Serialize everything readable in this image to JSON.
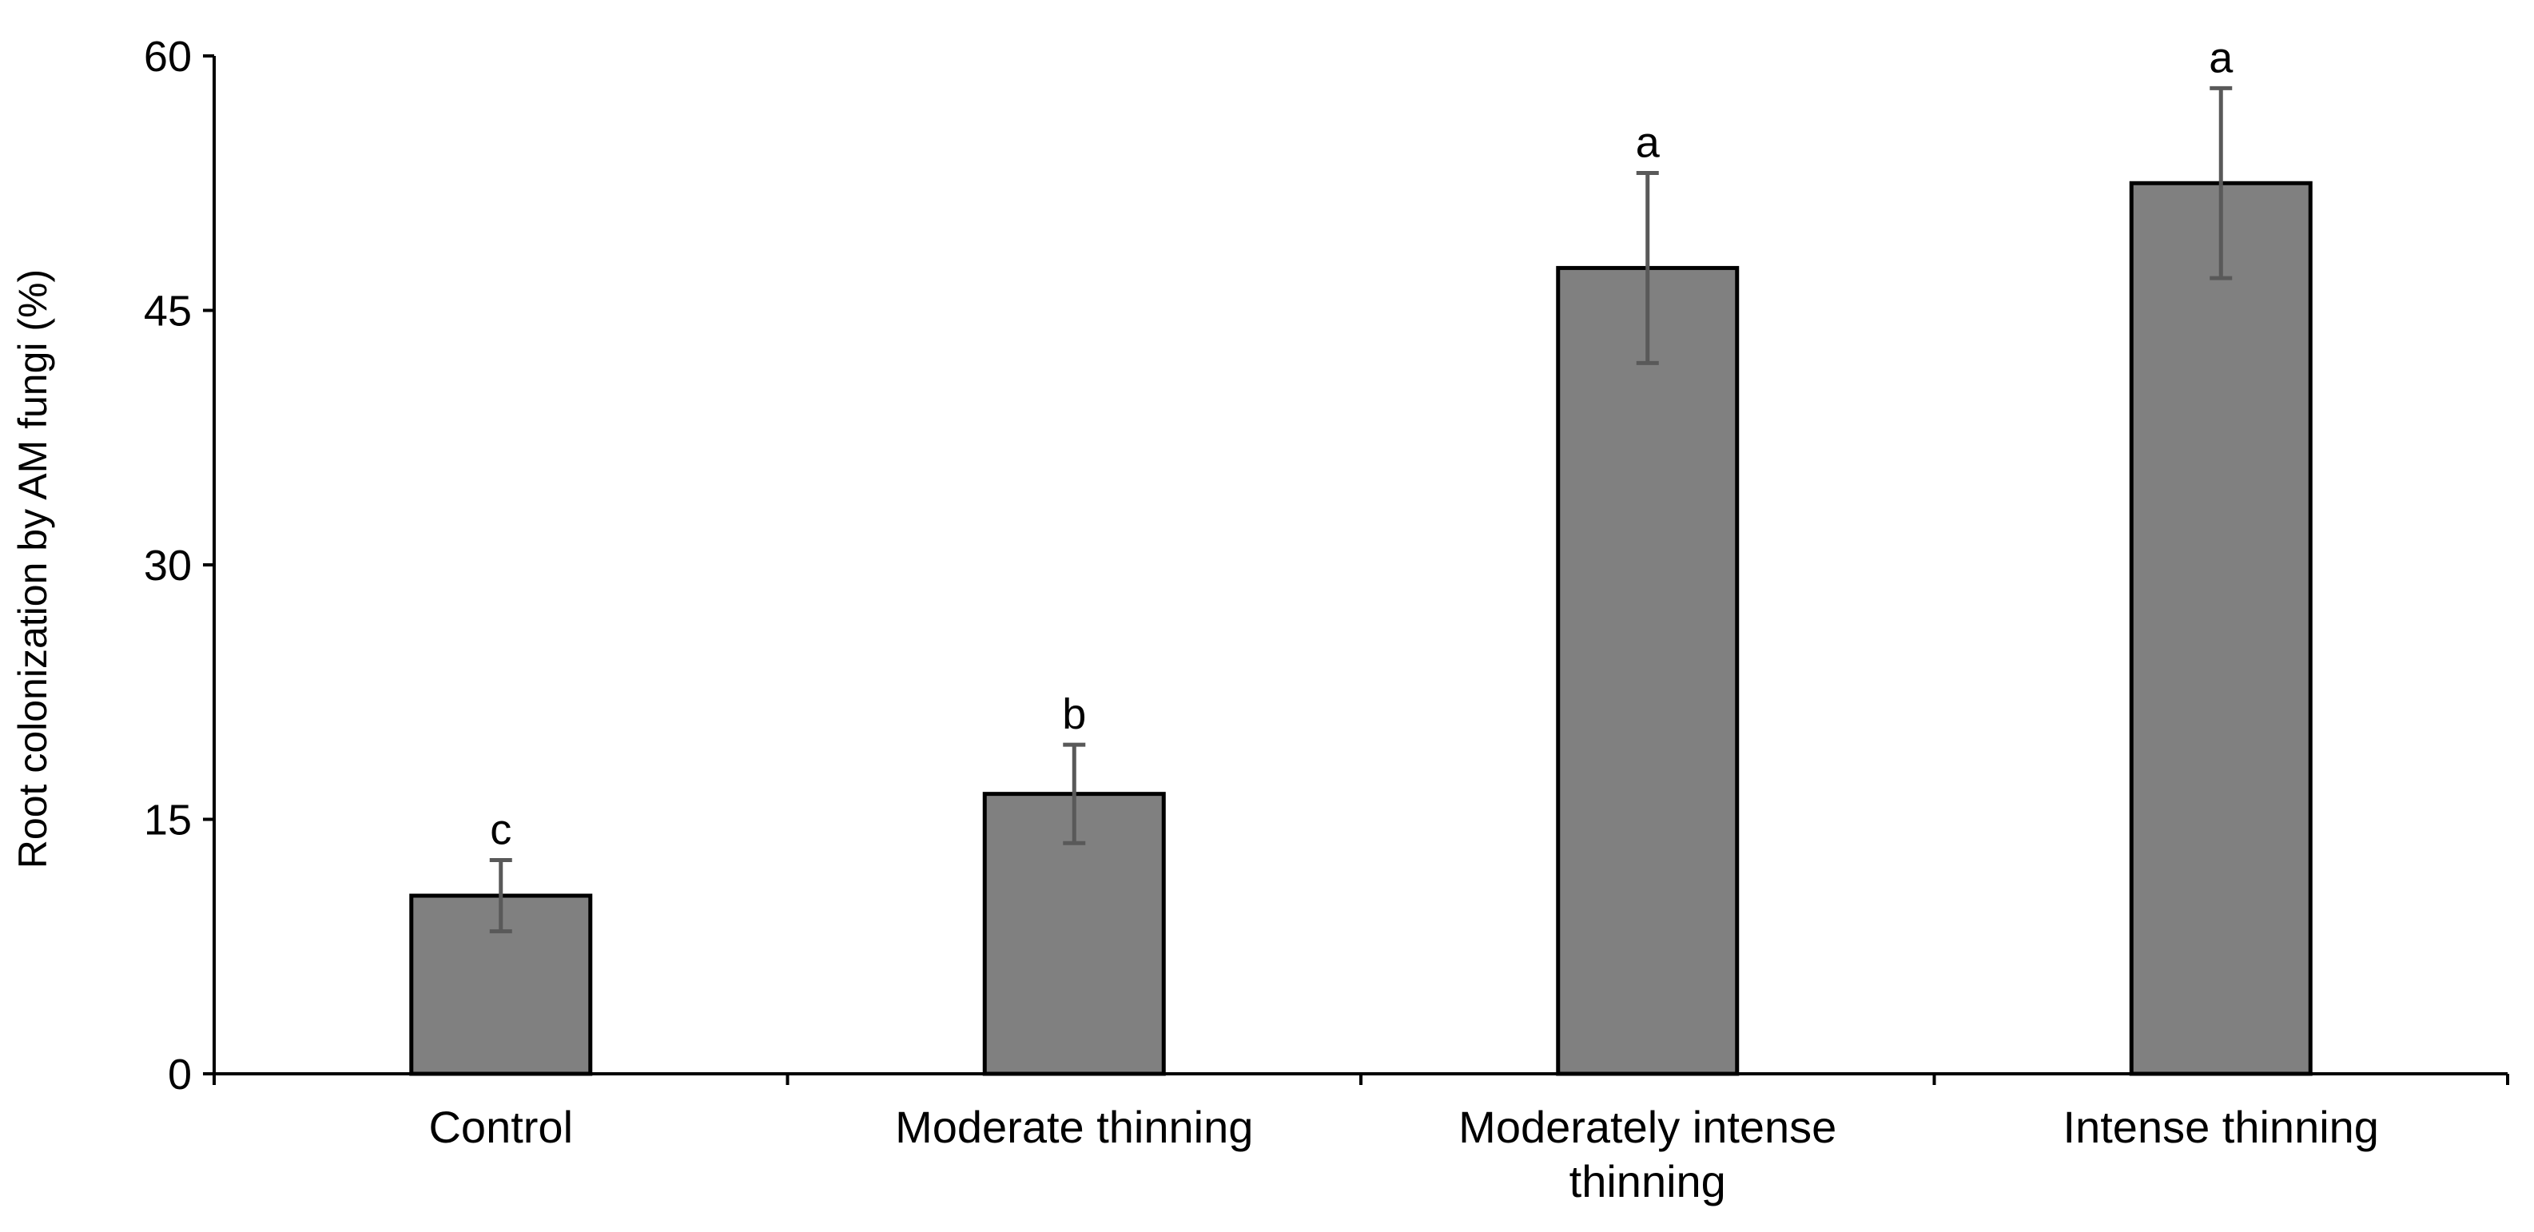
{
  "chart_data": {
    "type": "bar",
    "title": "",
    "xlabel": "",
    "ylabel": "Root colonization by AM fungi (%)",
    "ylim": [
      0,
      60
    ],
    "yticks": [
      "0",
      "15",
      "30",
      "45",
      "60"
    ],
    "grid": false,
    "legend": "none",
    "bar_color": "#808080",
    "error_bar_color": "#595959",
    "categories": [
      {
        "label_lines": [
          "Control"
        ]
      },
      {
        "label_lines": [
          "Moderate thinning"
        ]
      },
      {
        "label_lines": [
          "Moderately intense",
          "thinning"
        ]
      },
      {
        "label_lines": [
          "Intense thinning"
        ]
      }
    ],
    "values": [
      10.5,
      16.5,
      47.5,
      52.5
    ],
    "errors": [
      2.1,
      2.9,
      5.6,
      5.6
    ],
    "significance_letters": [
      "c",
      "b",
      "a",
      "a"
    ]
  }
}
